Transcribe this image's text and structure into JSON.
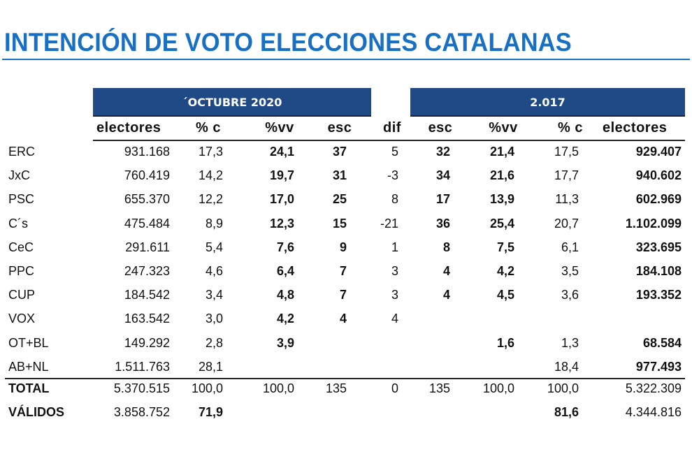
{
  "title": "INTENCIÓN DE VOTO ELECCIONES CATALANAS",
  "groups": {
    "current": "´OCTUBRE 2020",
    "previous": "2.017"
  },
  "columns": {
    "current_electores": "electores",
    "current_pc": "% c",
    "current_pvv": "%vv",
    "current_esc": "esc",
    "dif": "dif",
    "prev_esc": "esc",
    "prev_pvv": "%vv",
    "prev_pc": "% c",
    "prev_electores": "electores"
  },
  "rows": [
    {
      "party": "ERC",
      "electores": "931.168",
      "pc": "17,3",
      "pvv": "24,1",
      "esc": "37",
      "dif": "5",
      "esc17": "32",
      "pvv17": "21,4",
      "pc17": "17,5",
      "electores17": "929.407"
    },
    {
      "party": "JxC",
      "electores": "760.419",
      "pc": "14,2",
      "pvv": "19,7",
      "esc": "31",
      "dif": "-3",
      "esc17": "34",
      "pvv17": "21,6",
      "pc17": "17,7",
      "electores17": "940.602"
    },
    {
      "party": "PSC",
      "electores": "655.370",
      "pc": "12,2",
      "pvv": "17,0",
      "esc": "25",
      "dif": "8",
      "esc17": "17",
      "pvv17": "13,9",
      "pc17": "11,3",
      "electores17": "602.969"
    },
    {
      "party": "C´s",
      "electores": "475.484",
      "pc": "8,9",
      "pvv": "12,3",
      "esc": "15",
      "dif": "-21",
      "esc17": "36",
      "pvv17": "25,4",
      "pc17": "20,7",
      "electores17": "1.102.099"
    },
    {
      "party": "CeC",
      "electores": "291.611",
      "pc": "5,4",
      "pvv": "7,6",
      "esc": "9",
      "dif": "1",
      "esc17": "8",
      "pvv17": "7,5",
      "pc17": "6,1",
      "electores17": "323.695"
    },
    {
      "party": "PPC",
      "electores": "247.323",
      "pc": "4,6",
      "pvv": "6,4",
      "esc": "7",
      "dif": "3",
      "esc17": "4",
      "pvv17": "4,2",
      "pc17": "3,5",
      "electores17": "184.108"
    },
    {
      "party": "CUP",
      "electores": "184.542",
      "pc": "3,4",
      "pvv": "4,8",
      "esc": "7",
      "dif": "3",
      "esc17": "4",
      "pvv17": "4,5",
      "pc17": "3,6",
      "electores17": "193.352"
    },
    {
      "party": "VOX",
      "electores": "163.542",
      "pc": "3,0",
      "pvv": "4,2",
      "esc": "4",
      "dif": "4",
      "esc17": "",
      "pvv17": "",
      "pc17": "",
      "electores17": ""
    },
    {
      "party": "OT+BL",
      "electores": "149.292",
      "pc": "2,8",
      "pvv": "3,9",
      "esc": "",
      "dif": "",
      "esc17": "",
      "pvv17": "1,6",
      "pc17": "1,3",
      "electores17": "68.584"
    },
    {
      "party": "AB+NL",
      "electores": "1.511.763",
      "pc": "28,1",
      "pvv": "",
      "esc": "",
      "dif": "",
      "esc17": "",
      "pvv17": "",
      "pc17": "18,4",
      "electores17": "977.493"
    }
  ],
  "total": {
    "label": "TOTAL",
    "electores": "5.370.515",
    "pc": "100,0",
    "pvv": "100,0",
    "esc": "135",
    "dif": "0",
    "esc17": "135",
    "pvv17": "100,0",
    "pc17": "100,0",
    "electores17": "5.322.309"
  },
  "validos": {
    "label": "VÁLIDOS",
    "electores": "3.858.752",
    "pc": "71,9",
    "pc17": "81,6",
    "electores17": "4.344.816"
  },
  "colors": {
    "title": "#1870c4",
    "band": "#1f4a85"
  }
}
